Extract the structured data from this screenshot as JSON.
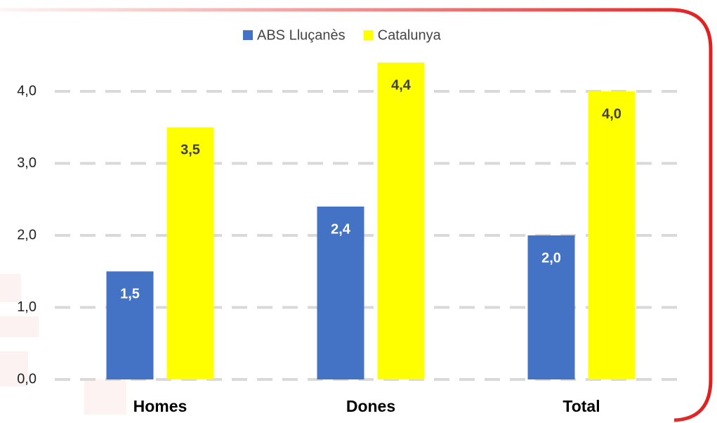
{
  "chart_data": {
    "type": "bar",
    "categories": [
      "Homes",
      "Dones",
      "Total"
    ],
    "series": [
      {
        "name": "ABS Lluçanès",
        "color": "#4472c4",
        "values": [
          1.5,
          2.4,
          2.0
        ],
        "value_labels": [
          "1,5",
          "2,4",
          "2,0"
        ]
      },
      {
        "name": "Catalunya",
        "color": "#ffff00",
        "values": [
          3.5,
          4.4,
          4.0
        ],
        "value_labels": [
          "3,5",
          "4,4",
          "4,0"
        ]
      }
    ],
    "ylim": [
      0,
      4.5
    ],
    "yticks": [
      {
        "value": 0,
        "label": "0,0"
      },
      {
        "value": 1,
        "label": "1,0"
      },
      {
        "value": 2,
        "label": "2,0"
      },
      {
        "value": 3,
        "label": "3,0"
      },
      {
        "value": 4,
        "label": "4,0"
      }
    ],
    "grid": true,
    "legend": "top"
  }
}
